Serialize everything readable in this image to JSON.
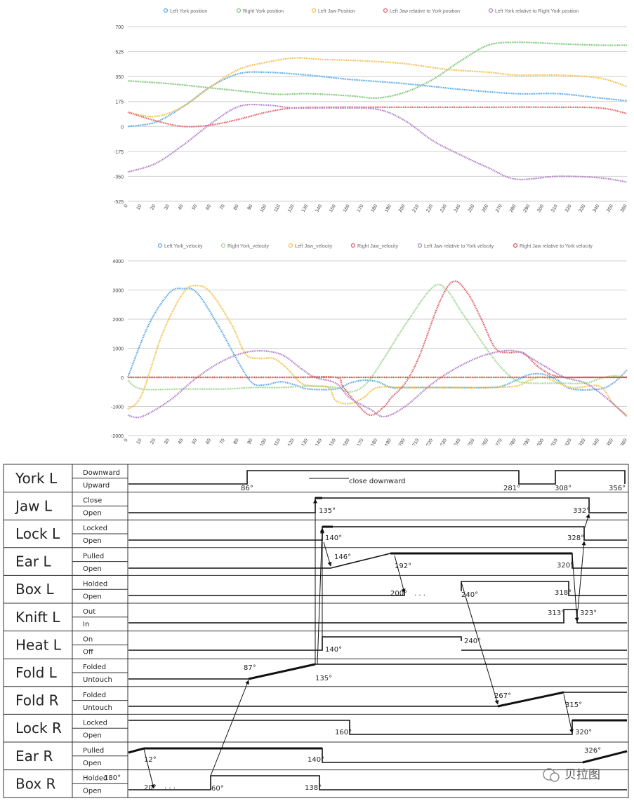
{
  "chart_data": [
    {
      "type": "line",
      "title": "",
      "xlabel": "",
      "ylabel": "",
      "ylim": [
        -525,
        700
      ],
      "yticks": [
        700,
        525,
        350,
        175,
        0,
        -175,
        -350,
        -525
      ],
      "xlim": [
        0,
        360
      ],
      "xticks": [
        0,
        10,
        20,
        30,
        40,
        50,
        60,
        70,
        80,
        90,
        100,
        110,
        120,
        130,
        140,
        150,
        160,
        170,
        180,
        190,
        200,
        210,
        220,
        230,
        240,
        250,
        260,
        270,
        280,
        290,
        300,
        310,
        320,
        330,
        340,
        350,
        360
      ],
      "grid": "horizontal",
      "legend": "top",
      "series": [
        {
          "name": "Left York position",
          "color": "#5aa9e6",
          "points": [
            [
              0,
              0
            ],
            [
              20,
              30
            ],
            [
              40,
              140
            ],
            [
              60,
              280
            ],
            [
              80,
              370
            ],
            [
              100,
              380
            ],
            [
              130,
              360
            ],
            [
              160,
              330
            ],
            [
              200,
              300
            ],
            [
              240,
              260
            ],
            [
              280,
              230
            ],
            [
              310,
              230
            ],
            [
              340,
              200
            ],
            [
              360,
              180
            ]
          ]
        },
        {
          "name": "Right York position",
          "color": "#7cc576",
          "points": [
            [
              0,
              320
            ],
            [
              30,
              300
            ],
            [
              60,
              270
            ],
            [
              90,
              240
            ],
            [
              110,
              225
            ],
            [
              130,
              230
            ],
            [
              160,
              215
            ],
            [
              180,
              200
            ],
            [
              200,
              240
            ],
            [
              220,
              330
            ],
            [
              240,
              460
            ],
            [
              260,
              570
            ],
            [
              280,
              590
            ],
            [
              310,
              580
            ],
            [
              340,
              570
            ],
            [
              360,
              570
            ]
          ]
        },
        {
          "name": "Left Jaw Position",
          "color": "#f2c14e",
          "points": [
            [
              0,
              100
            ],
            [
              20,
              70
            ],
            [
              40,
              140
            ],
            [
              60,
              280
            ],
            [
              80,
              400
            ],
            [
              100,
              450
            ],
            [
              120,
              480
            ],
            [
              140,
              470
            ],
            [
              170,
              460
            ],
            [
              200,
              440
            ],
            [
              230,
              400
            ],
            [
              260,
              380
            ],
            [
              280,
              360
            ],
            [
              310,
              360
            ],
            [
              340,
              340
            ],
            [
              360,
              280
            ]
          ]
        },
        {
          "name": "Left Jaw relative to York position",
          "color": "#e2626b",
          "points": [
            [
              0,
              100
            ],
            [
              20,
              40
            ],
            [
              40,
              0
            ],
            [
              60,
              10
            ],
            [
              80,
              50
            ],
            [
              100,
              100
            ],
            [
              120,
              130
            ],
            [
              150,
              135
            ],
            [
              180,
              135
            ],
            [
              220,
              135
            ],
            [
              260,
              135
            ],
            [
              300,
              135
            ],
            [
              340,
              130
            ],
            [
              360,
              90
            ]
          ]
        },
        {
          "name": "Left York relative to Right York position",
          "color": "#b07fc6",
          "points": [
            [
              0,
              -320
            ],
            [
              20,
              -260
            ],
            [
              40,
              -130
            ],
            [
              60,
              20
            ],
            [
              80,
              140
            ],
            [
              100,
              150
            ],
            [
              120,
              130
            ],
            [
              150,
              130
            ],
            [
              180,
              120
            ],
            [
              200,
              40
            ],
            [
              220,
              -100
            ],
            [
              240,
              -200
            ],
            [
              260,
              -290
            ],
            [
              280,
              -370
            ],
            [
              310,
              -350
            ],
            [
              340,
              -360
            ],
            [
              360,
              -390
            ]
          ]
        }
      ]
    },
    {
      "type": "line",
      "title": "",
      "xlabel": "",
      "ylabel": "",
      "ylim": [
        -2000,
        4000
      ],
      "yticks": [
        4000,
        3000,
        2000,
        1000,
        0,
        -1000,
        -2000
      ],
      "xlim": [
        0,
        360
      ],
      "xticks": [
        0,
        10,
        20,
        30,
        40,
        50,
        60,
        70,
        80,
        90,
        100,
        110,
        120,
        130,
        140,
        150,
        160,
        170,
        180,
        190,
        200,
        210,
        220,
        230,
        240,
        250,
        260,
        270,
        280,
        290,
        300,
        310,
        320,
        330,
        340,
        350,
        360
      ],
      "grid": "horizontal",
      "legend": "top",
      "series": [
        {
          "name": "Left York_velocity",
          "color": "#5aa9e6",
          "points": [
            [
              0,
              0
            ],
            [
              15,
              1800
            ],
            [
              30,
              2900
            ],
            [
              40,
              3050
            ],
            [
              50,
              2900
            ],
            [
              65,
              1800
            ],
            [
              80,
              500
            ],
            [
              90,
              -200
            ],
            [
              100,
              -250
            ],
            [
              110,
              -150
            ],
            [
              120,
              -250
            ],
            [
              130,
              -400
            ],
            [
              150,
              -400
            ],
            [
              160,
              -200
            ],
            [
              170,
              -100
            ],
            [
              180,
              -150
            ],
            [
              190,
              -350
            ],
            [
              200,
              -350
            ],
            [
              230,
              -350
            ],
            [
              260,
              -350
            ],
            [
              270,
              -300
            ],
            [
              280,
              -100
            ],
            [
              290,
              100
            ],
            [
              300,
              100
            ],
            [
              310,
              -100
            ],
            [
              320,
              -400
            ],
            [
              340,
              -400
            ],
            [
              350,
              -200
            ],
            [
              360,
              250
            ]
          ]
        },
        {
          "name": "Right York_velocity",
          "color": "#9ed58f",
          "points": [
            [
              0,
              -100
            ],
            [
              10,
              -400
            ],
            [
              40,
              -400
            ],
            [
              70,
              -400
            ],
            [
              90,
              -350
            ],
            [
              110,
              -350
            ],
            [
              130,
              -300
            ],
            [
              150,
              -350
            ],
            [
              160,
              -500
            ],
            [
              170,
              -300
            ],
            [
              180,
              300
            ],
            [
              200,
              1800
            ],
            [
              220,
              3100
            ],
            [
              230,
              3000
            ],
            [
              240,
              2300
            ],
            [
              260,
              900
            ],
            [
              270,
              300
            ],
            [
              280,
              -100
            ],
            [
              290,
              -200
            ],
            [
              310,
              -200
            ],
            [
              330,
              -200
            ],
            [
              340,
              -50
            ],
            [
              350,
              50
            ],
            [
              360,
              0
            ]
          ]
        },
        {
          "name": "Left Jaw_velocity",
          "color": "#f2c14e",
          "points": [
            [
              0,
              -1100
            ],
            [
              10,
              -600
            ],
            [
              25,
              1500
            ],
            [
              40,
              2900
            ],
            [
              50,
              3150
            ],
            [
              60,
              2900
            ],
            [
              75,
              1800
            ],
            [
              85,
              800
            ],
            [
              95,
              650
            ],
            [
              105,
              650
            ],
            [
              115,
              300
            ],
            [
              125,
              -200
            ],
            [
              135,
              -300
            ],
            [
              145,
              -350
            ],
            [
              150,
              -800
            ],
            [
              160,
              -900
            ],
            [
              170,
              -700
            ],
            [
              180,
              -350
            ],
            [
              200,
              -350
            ],
            [
              230,
              -350
            ],
            [
              260,
              -350
            ],
            [
              280,
              -300
            ],
            [
              290,
              -100
            ],
            [
              300,
              0
            ],
            [
              320,
              -350
            ],
            [
              340,
              -300
            ],
            [
              350,
              -900
            ],
            [
              360,
              -1300
            ]
          ]
        },
        {
          "name": "Right Jaw_velocity",
          "color": "#e2626b",
          "points": [
            [
              0,
              0
            ],
            [
              30,
              0
            ],
            [
              60,
              0
            ],
            [
              90,
              0
            ],
            [
              120,
              0
            ],
            [
              150,
              0
            ],
            [
              155,
              -300
            ],
            [
              165,
              -900
            ],
            [
              175,
              -1300
            ],
            [
              185,
              -1000
            ],
            [
              190,
              -700
            ],
            [
              200,
              -200
            ],
            [
              210,
              700
            ],
            [
              225,
              2600
            ],
            [
              235,
              3300
            ],
            [
              245,
              2900
            ],
            [
              255,
              2000
            ],
            [
              265,
              1000
            ],
            [
              275,
              850
            ],
            [
              285,
              850
            ],
            [
              295,
              400
            ],
            [
              305,
              100
            ],
            [
              315,
              0
            ],
            [
              330,
              0
            ],
            [
              360,
              0
            ]
          ]
        },
        {
          "name": "Left Jaw relative to York velocity",
          "color": "#b07fc6",
          "points": [
            [
              0,
              -1300
            ],
            [
              10,
              -1350
            ],
            [
              30,
              -800
            ],
            [
              50,
              0
            ],
            [
              70,
              600
            ],
            [
              90,
              900
            ],
            [
              110,
              800
            ],
            [
              125,
              300
            ],
            [
              135,
              0
            ],
            [
              150,
              -200
            ],
            [
              160,
              -700
            ],
            [
              175,
              -1100
            ],
            [
              185,
              -1350
            ],
            [
              200,
              -1000
            ],
            [
              220,
              -200
            ],
            [
              240,
              400
            ],
            [
              260,
              800
            ],
            [
              280,
              900
            ],
            [
              300,
              400
            ],
            [
              315,
              0
            ],
            [
              330,
              -200
            ],
            [
              345,
              -700
            ],
            [
              360,
              -1350
            ]
          ]
        },
        {
          "name": "Right Jaw relative to York velocity",
          "color": "#d9534f",
          "points": [
            [
              0,
              0
            ],
            [
              60,
              0
            ],
            [
              120,
              0
            ],
            [
              180,
              0
            ],
            [
              240,
              0
            ],
            [
              300,
              0
            ],
            [
              360,
              0
            ]
          ]
        }
      ]
    }
  ],
  "timing": {
    "rows": [
      {
        "label": "York L",
        "top": "Downward",
        "bottom": "Upward"
      },
      {
        "label": "Jaw L",
        "top": "Close",
        "bottom": "Open"
      },
      {
        "label": "Lock L",
        "top": "Locked",
        "bottom": "Open"
      },
      {
        "label": "Ear L",
        "top": "Pulled",
        "bottom": "Open"
      },
      {
        "label": "Box L",
        "top": "Holded",
        "bottom": "Open"
      },
      {
        "label": "Knift L",
        "top": "Out",
        "bottom": "In"
      },
      {
        "label": "Heat L",
        "top": "On",
        "bottom": "Off"
      },
      {
        "label": "Fold L",
        "top": "Folded",
        "bottom": "Untouch"
      },
      {
        "label": "Fold R",
        "top": "Folded",
        "bottom": "Untouch"
      },
      {
        "label": "Lock R",
        "top": "Locked",
        "bottom": "Open"
      },
      {
        "label": "Ear R",
        "top": "Pulled",
        "bottom": "Open"
      },
      {
        "label": "Box R",
        "top": "Holded",
        "bottom": "Open"
      }
    ],
    "annotations": {
      "york_86": "86°",
      "york_note": "close downward",
      "york_281": "281°",
      "york_308": "308°",
      "york_356": "356°",
      "jaw_135": "135°",
      "jaw_332": "332°",
      "lock_140": "140°",
      "lock_328": "328°",
      "ear_146": "146°",
      "ear_192": "192°",
      "ear_320": "320°",
      "box_200": "200°",
      "box_240": "240°",
      "box_318": "318°",
      "knift_313": "313°",
      "knift_323": "323°",
      "heat_140": "140°",
      "heat_240": "240°",
      "fold_87": "87°",
      "fold_135": "135°",
      "foldr_267": "267°",
      "foldr_315": "315°",
      "lockr_160": "160°",
      "lockr_320": "320°",
      "earr_12": "12°",
      "earr_140": "140°",
      "earr_326": "326°",
      "boxr_20": "20°",
      "boxr_60": "60°",
      "boxr_138": "138°",
      "boxr_180": "180°"
    },
    "dots": ". . ."
  },
  "watermark": "贝拉图"
}
